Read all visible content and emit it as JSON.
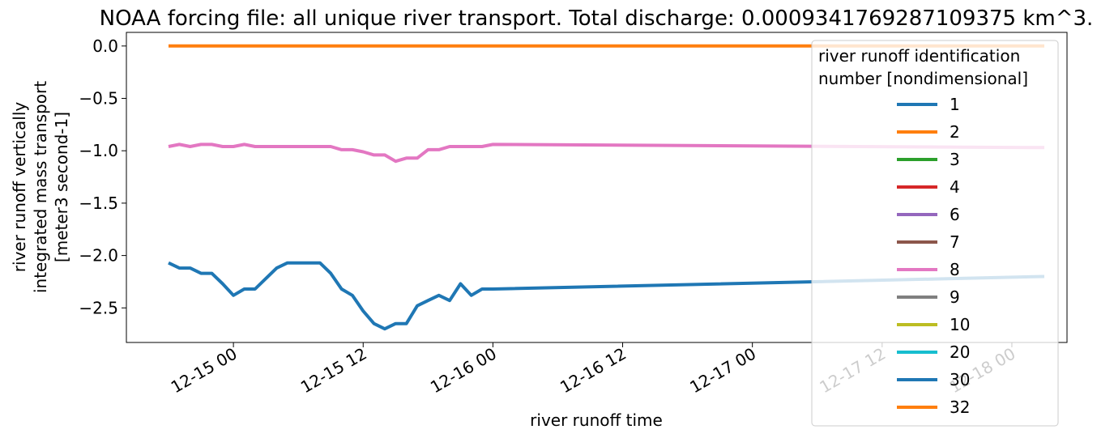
{
  "chart_data": {
    "type": "line",
    "title": "NOAA forcing file: all unique river transport. Total discharge: 0.0009341769287109375 km^3.",
    "xlabel": "river runoff time",
    "ylabel_lines": [
      "river runoff vertically",
      "integrated mass transport",
      "[meter3 second-1]"
    ],
    "x_tick_labels": [
      "12-15 00",
      "12-15 12",
      "12-16 00",
      "12-16 12",
      "12-17 00",
      "12-17 12",
      "12-18 00"
    ],
    "x_tick_hours": [
      0,
      12,
      24,
      36,
      48,
      60,
      72
    ],
    "x_unit": "hours since 12-15 00",
    "xlim_hours": [
      -9.9,
      77.1
    ],
    "y_tick_labels": [
      "0.0",
      "−0.5",
      "−1.0",
      "−1.5",
      "−2.0",
      "−2.5"
    ],
    "y_ticks": [
      0.0,
      -0.5,
      -1.0,
      -1.5,
      -2.0,
      -2.5
    ],
    "ylim": [
      -2.83,
      0.13
    ],
    "grid": false,
    "legend": {
      "title_lines": [
        "river runoff identification",
        "number [nondimensional]"
      ],
      "placement": "upper-right",
      "entries": [
        {
          "label": "1",
          "color": "#1f77b4"
        },
        {
          "label": "2",
          "color": "#ff7f0e"
        },
        {
          "label": "3",
          "color": "#2ca02c"
        },
        {
          "label": "4",
          "color": "#d62728"
        },
        {
          "label": "6",
          "color": "#9467bd"
        },
        {
          "label": "7",
          "color": "#8c564b"
        },
        {
          "label": "8",
          "color": "#e377c2"
        },
        {
          "label": "9",
          "color": "#7f7f7f"
        },
        {
          "label": "10",
          "color": "#bcbd22"
        },
        {
          "label": "20",
          "color": "#17becf"
        },
        {
          "label": "30",
          "color": "#1f77b4"
        },
        {
          "label": "32",
          "color": "#ff7f0e"
        }
      ]
    },
    "series": [
      {
        "name": "2",
        "color": "#ff7f0e",
        "x": [
          -6,
          75
        ],
        "y": [
          0.0,
          0.0
        ]
      },
      {
        "name": "8",
        "color": "#e377c2",
        "x": [
          -6,
          -5,
          -4,
          -3,
          -2,
          -1,
          0,
          1,
          2,
          3,
          4,
          5,
          6,
          7,
          8,
          9,
          10,
          11,
          12,
          13,
          14,
          15,
          16,
          17,
          18,
          19,
          20,
          21,
          22,
          23,
          24,
          75
        ],
        "y": [
          -0.96,
          -0.94,
          -0.96,
          -0.94,
          -0.94,
          -0.96,
          -0.96,
          -0.94,
          -0.96,
          -0.96,
          -0.96,
          -0.96,
          -0.96,
          -0.96,
          -0.96,
          -0.96,
          -0.99,
          -0.99,
          -1.01,
          -1.04,
          -1.04,
          -1.1,
          -1.07,
          -1.07,
          -0.99,
          -0.99,
          -0.96,
          -0.96,
          -0.96,
          -0.96,
          -0.94,
          -0.97
        ]
      },
      {
        "name": "1",
        "color": "#1f77b4",
        "x": [
          -6,
          -5,
          -4,
          -3,
          -2,
          -1,
          0,
          1,
          2,
          3,
          4,
          5,
          6,
          7,
          8,
          9,
          10,
          11,
          12,
          13,
          14,
          15,
          16,
          17,
          18,
          19,
          20,
          21,
          22,
          23,
          24,
          75
        ],
        "y": [
          -2.07,
          -2.12,
          -2.12,
          -2.17,
          -2.17,
          -2.27,
          -2.38,
          -2.32,
          -2.32,
          -2.22,
          -2.12,
          -2.07,
          -2.07,
          -2.07,
          -2.07,
          -2.17,
          -2.32,
          -2.38,
          -2.53,
          -2.65,
          -2.7,
          -2.65,
          -2.65,
          -2.48,
          -2.43,
          -2.38,
          -2.43,
          -2.27,
          -2.38,
          -2.32,
          -2.32,
          -2.2
        ]
      }
    ]
  }
}
